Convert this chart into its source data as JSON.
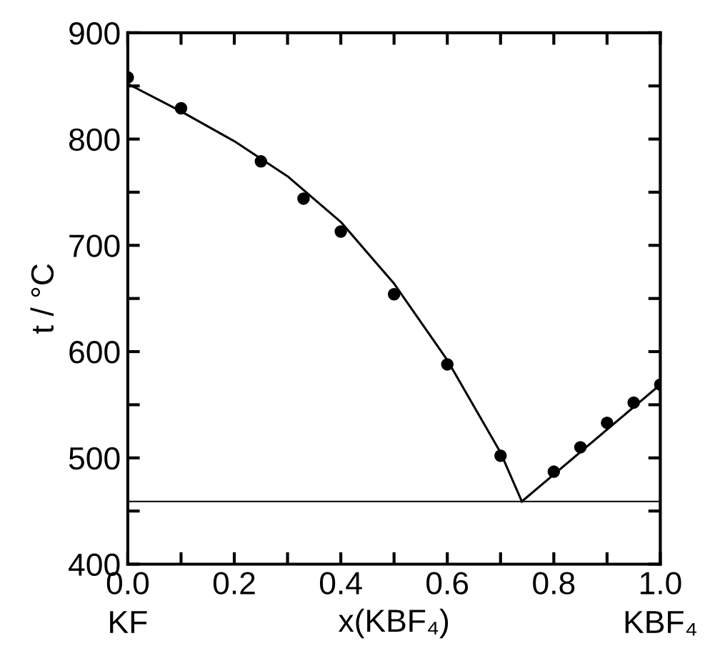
{
  "chart_data": {
    "type": "scatter",
    "xlabel": "x(KBF₄)",
    "ylabel": "t / °C",
    "annotations": [
      "KF",
      "KBF₄"
    ],
    "series": [
      {
        "color": "#000000",
        "marker": "circle",
        "x": [
          0.0,
          0.1,
          0.25,
          0.33,
          0.4,
          0.5,
          0.6,
          0.7,
          0.8,
          0.85,
          0.9,
          0.95,
          1.0
        ],
        "values": [
          858,
          829,
          779,
          744,
          713,
          654,
          588,
          502,
          487,
          510,
          533,
          552,
          569
        ]
      },
      {
        "type": "line",
        "color": "#000000",
        "marker": "none",
        "x": [
          0.0,
          0.1,
          0.2,
          0.3,
          0.4,
          0.5,
          0.6,
          0.7,
          0.74
        ],
        "values": [
          852,
          826,
          798,
          765,
          722,
          664,
          592,
          505,
          459
        ]
      },
      {
        "type": "line",
        "color": "#000000",
        "marker": "none",
        "x": [
          0.74,
          1.0
        ],
        "values": [
          459,
          569
        ]
      }
    ],
    "ref_lines": [
      {
        "axis": "y",
        "value": 459,
        "color": "#000000"
      }
    ],
    "xlim": [
      0,
      1
    ],
    "ylim": [
      400,
      900
    ],
    "xticks": [
      {
        "value": 0,
        "label": "0.0"
      },
      {
        "value": 0.1,
        "label": null
      },
      0.2,
      {
        "value": 0.3,
        "label": null
      },
      0.4,
      {
        "value": 0.5,
        "label": null
      },
      0.6,
      {
        "value": 0.7,
        "label": null
      },
      0.8,
      {
        "value": 0.9,
        "label": null
      },
      {
        "value": 1,
        "label": "1.0"
      }
    ],
    "yticks": [
      400,
      {
        "value": 450,
        "label": null
      },
      500,
      {
        "value": 550,
        "label": null
      },
      600,
      {
        "value": 650,
        "label": null
      },
      700,
      {
        "value": 750,
        "label": null
      },
      800,
      {
        "value": 850,
        "label": null
      },
      900
    ],
    "grid": false
  }
}
